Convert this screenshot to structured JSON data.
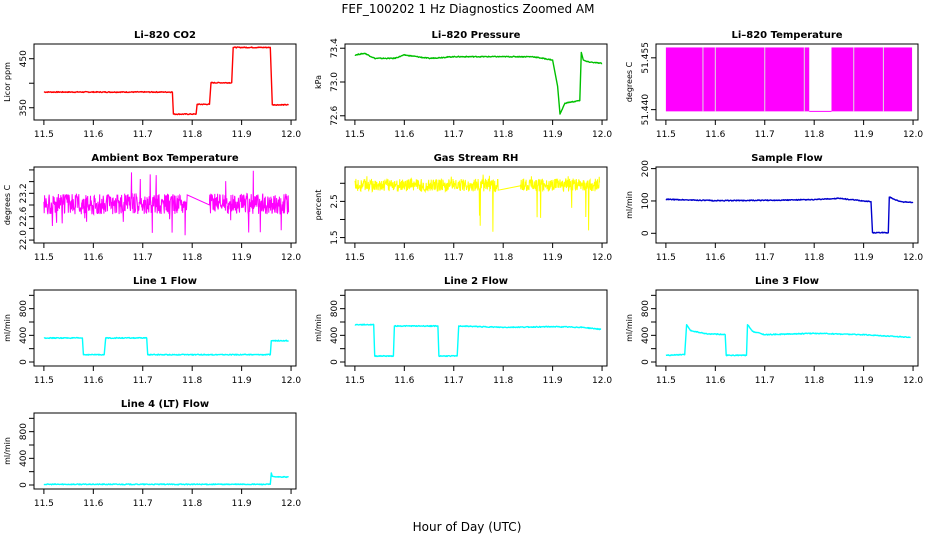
{
  "figure": {
    "title": "FEF_100202  1 Hz Diagnostics Zoomed AM",
    "xlabel": "Hour of Day (UTC)"
  },
  "chart_data": [
    {
      "type": "line",
      "title": "Li–820 CO2",
      "ylabel": "Licor ppm",
      "color": "#ff0000",
      "ylim": [
        325,
        480
      ],
      "yticks": [
        350,
        400,
        450
      ],
      "ytick_labels": [
        "350",
        "",
        "450"
      ],
      "xlim": [
        11.48,
        12.01
      ],
      "xticks": [
        11.5,
        11.6,
        11.7,
        11.8,
        11.9,
        12.0
      ],
      "x": [
        11.5,
        11.76,
        11.762,
        11.808,
        11.81,
        11.835,
        11.838,
        11.88,
        11.883,
        11.958,
        11.962,
        11.995
      ],
      "y": [
        382,
        382,
        337,
        337,
        357,
        357,
        401,
        401,
        473,
        473,
        356,
        356
      ]
    },
    {
      "type": "line",
      "title": "Li–820 Pressure",
      "ylabel": "kPa",
      "color": "#00c000",
      "ylim": [
        72.55,
        73.45
      ],
      "yticks": [
        72.6,
        73.0,
        73.4
      ],
      "ytick_labels": [
        "72.6",
        "73.0",
        "73.4"
      ],
      "xlim": [
        11.48,
        12.01
      ],
      "xticks": [
        11.5,
        11.6,
        11.7,
        11.8,
        11.9,
        12.0
      ],
      "x": [
        11.5,
        11.52,
        11.54,
        11.58,
        11.6,
        11.65,
        11.7,
        11.75,
        11.8,
        11.86,
        11.9,
        11.91,
        11.915,
        11.925,
        11.955,
        11.958,
        11.962,
        11.97,
        12.0
      ],
      "y": [
        73.32,
        73.34,
        73.28,
        73.28,
        73.32,
        73.28,
        73.3,
        73.3,
        73.3,
        73.3,
        73.26,
        72.95,
        72.62,
        72.75,
        72.78,
        73.35,
        73.26,
        73.24,
        73.22
      ]
    },
    {
      "type": "area",
      "title": "Li–820 Temperature",
      "ylabel": "degrees C",
      "color": "#ff00ff",
      "ylim": [
        51.437,
        51.459
      ],
      "yticks": [
        51.44,
        51.455
      ],
      "ytick_labels": [
        "51.440",
        "51.455"
      ],
      "xlim": [
        11.48,
        12.01
      ],
      "xticks": [
        11.5,
        11.6,
        11.7,
        11.8,
        11.9,
        12.0
      ],
      "bands": [
        [
          11.5,
          11.79
        ],
        [
          11.835,
          11.998
        ]
      ],
      "low": 51.4395,
      "high": 51.458,
      "gap_x": [
        11.575,
        11.6,
        11.7,
        11.78,
        11.88,
        11.94
      ]
    },
    {
      "type": "line",
      "title": "Ambient Box Temperature",
      "ylabel": "degrees C",
      "color": "#ff00ff",
      "ylim": [
        21.95,
        23.25
      ],
      "yticks": [
        22.0,
        22.2,
        22.4,
        22.6,
        22.8,
        23.0,
        23.2
      ],
      "ytick_labels": [
        "22.0",
        "",
        "22.6",
        "",
        "23.2",
        "",
        ""
      ],
      "xlim": [
        11.48,
        12.01
      ],
      "xticks": [
        11.5,
        11.6,
        11.7,
        11.8,
        11.9,
        12.0
      ],
      "noise": {
        "segments": [
          [
            11.5,
            11.79
          ],
          [
            11.835,
            11.995
          ]
        ],
        "center": 22.62,
        "amp": 0.18,
        "spike_lo": 22.02,
        "spike_hi": 23.22
      }
    },
    {
      "type": "line",
      "title": "Gas Stream RH",
      "ylabel": "percent",
      "color": "#ffff00",
      "ylim": [
        1.35,
        3.45
      ],
      "yticks": [
        1.5,
        2.0,
        2.5,
        3.0
      ],
      "ytick_labels": [
        "1.5",
        "",
        "2.5",
        ""
      ],
      "xlim": [
        11.48,
        12.01
      ],
      "xticks": [
        11.5,
        11.6,
        11.7,
        11.8,
        11.9,
        12.0
      ],
      "noise": {
        "segments": [
          [
            11.5,
            11.79
          ],
          [
            11.835,
            11.995
          ]
        ],
        "center": 2.95,
        "amp": 0.18,
        "spike_lo": 1.45,
        "spike_hi": 3.3
      }
    },
    {
      "type": "line",
      "title": "Sample Flow",
      "ylabel": "ml/min",
      "color": "#0000cd",
      "ylim": [
        -30,
        205
      ],
      "yticks": [
        0,
        100,
        200
      ],
      "ytick_labels": [
        "0",
        "100",
        "200"
      ],
      "xlim": [
        11.48,
        12.01
      ],
      "xticks": [
        11.5,
        11.6,
        11.7,
        11.8,
        11.9,
        12.0
      ],
      "x": [
        11.5,
        11.55,
        11.6,
        11.7,
        11.8,
        11.85,
        11.9,
        11.915,
        11.918,
        11.95,
        11.952,
        11.97,
        11.98,
        12.0
      ],
      "y": [
        105,
        103,
        101,
        102,
        104,
        108,
        100,
        98,
        2,
        2,
        112,
        100,
        97,
        96
      ]
    },
    {
      "type": "line",
      "title": "Line 1 Flow",
      "ylabel": "ml/min",
      "color": "#00ffff",
      "ylim": [
        -60,
        1080
      ],
      "yticks": [
        0,
        200,
        400,
        600,
        800,
        1000
      ],
      "ytick_labels": [
        "0",
        "",
        "400",
        "",
        "800",
        ""
      ],
      "xlim": [
        11.48,
        12.01
      ],
      "xticks": [
        11.5,
        11.6,
        11.7,
        11.8,
        11.9,
        12.0
      ],
      "x": [
        11.5,
        11.578,
        11.58,
        11.622,
        11.625,
        11.708,
        11.71,
        11.958,
        11.96,
        11.995
      ],
      "y": [
        360,
        360,
        110,
        110,
        360,
        360,
        110,
        110,
        320,
        320
      ]
    },
    {
      "type": "line",
      "title": "Line 2 Flow",
      "ylabel": "ml/min",
      "color": "#00ffff",
      "ylim": [
        -60,
        1080
      ],
      "yticks": [
        0,
        200,
        400,
        600,
        800,
        1000
      ],
      "ytick_labels": [
        "0",
        "",
        "400",
        "",
        "800",
        ""
      ],
      "xlim": [
        11.48,
        12.01
      ],
      "xticks": [
        11.5,
        11.6,
        11.7,
        11.8,
        11.9,
        12.0
      ],
      "x": [
        11.5,
        11.538,
        11.54,
        11.578,
        11.58,
        11.668,
        11.67,
        11.707,
        11.71,
        11.8,
        11.9,
        11.96,
        11.998
      ],
      "y": [
        560,
        560,
        90,
        90,
        540,
        540,
        90,
        90,
        540,
        520,
        530,
        520,
        490
      ]
    },
    {
      "type": "line",
      "title": "Line 3 Flow",
      "ylabel": "ml/min",
      "color": "#00ffff",
      "ylim": [
        -60,
        1080
      ],
      "yticks": [
        0,
        200,
        400,
        600,
        800,
        1000
      ],
      "ytick_labels": [
        "0",
        "",
        "400",
        "",
        "800",
        ""
      ],
      "xlim": [
        11.48,
        12.01
      ],
      "xticks": [
        11.5,
        11.6,
        11.7,
        11.8,
        11.9,
        12.0
      ],
      "x": [
        11.5,
        11.538,
        11.542,
        11.55,
        11.57,
        11.585,
        11.6,
        11.62,
        11.622,
        11.663,
        11.665,
        11.675,
        11.7,
        11.8,
        11.9,
        11.995
      ],
      "y": [
        100,
        110,
        560,
        470,
        440,
        420,
        420,
        410,
        100,
        100,
        560,
        460,
        410,
        430,
        410,
        370
      ]
    },
    {
      "type": "line",
      "title": "Line 4 (LT) Flow",
      "ylabel": "ml/min",
      "color": "#00ffff",
      "ylim": [
        -60,
        1080
      ],
      "yticks": [
        0,
        200,
        400,
        600,
        800,
        1000
      ],
      "ytick_labels": [
        "0",
        "",
        "400",
        "",
        "800",
        ""
      ],
      "xlim": [
        11.48,
        12.01
      ],
      "xticks": [
        11.5,
        11.6,
        11.7,
        11.8,
        11.9,
        12.0
      ],
      "x": [
        11.5,
        11.958,
        11.96,
        11.962,
        11.97,
        11.995
      ],
      "y": [
        10,
        10,
        180,
        130,
        120,
        120
      ]
    }
  ]
}
